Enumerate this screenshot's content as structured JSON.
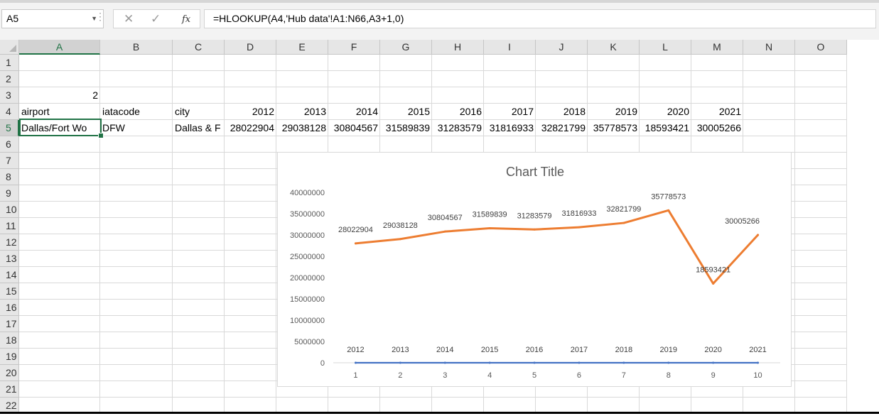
{
  "name_box": {
    "value": "A5"
  },
  "formula_bar": {
    "cancel_icon": "close-icon",
    "enter_icon": "check-icon",
    "function_label": "fx",
    "formula": "=HLOOKUP(A4,'Hub data'!A1:N66,A3+1,0)"
  },
  "columns": [
    "A",
    "B",
    "C",
    "D",
    "E",
    "F",
    "G",
    "H",
    "I",
    "J",
    "K",
    "L",
    "M",
    "N",
    "O"
  ],
  "rows": [
    "1",
    "2",
    "3",
    "4",
    "5",
    "6",
    "7",
    "8",
    "9",
    "10",
    "11",
    "12",
    "13",
    "14",
    "15",
    "16",
    "17",
    "18",
    "19",
    "20",
    "21",
    "22"
  ],
  "active_cell": "A5",
  "cells": {
    "A3": "2",
    "A4": "airport",
    "B4": "iatacode",
    "C4": "city",
    "D4": "2012",
    "E4": "2013",
    "F4": "2014",
    "G4": "2015",
    "H4": "2016",
    "I4": "2017",
    "J4": "2018",
    "K4": "2019",
    "L4": "2020",
    "M4": "2021",
    "A5": "Dallas/Fort Wo",
    "B5": "DFW",
    "C5": "Dallas & F",
    "D5": "28022904",
    "E5": "29038128",
    "F5": "30804567",
    "G5": "31589839",
    "H5": "31283579",
    "I5": "31816933",
    "J5": "32821799",
    "K5": "35778573",
    "L5": "18593421",
    "M5": "30005266"
  },
  "chart_data": {
    "type": "line",
    "title": "Chart Title",
    "categories": [
      "1",
      "2",
      "3",
      "4",
      "5",
      "6",
      "7",
      "8",
      "9",
      "10"
    ],
    "ylim": [
      0,
      40000000
    ],
    "yticks": [
      "0",
      "5000000",
      "10000000",
      "15000000",
      "20000000",
      "25000000",
      "30000000",
      "35000000",
      "40000000"
    ],
    "grid": false,
    "series": [
      {
        "values": [
          2012,
          2013,
          2014,
          2015,
          2016,
          2017,
          2018,
          2019,
          2020,
          2021
        ],
        "labels": [
          "2012",
          "2013",
          "2014",
          "2015",
          "2016",
          "2017",
          "2018",
          "2019",
          "2020",
          "2021"
        ],
        "color": "#4472c4"
      },
      {
        "values": [
          28022904,
          29038128,
          30804567,
          31589839,
          31283579,
          31816933,
          32821799,
          35778573,
          18593421,
          30005266
        ],
        "labels": [
          "28022904",
          "29038128",
          "30804567",
          "31589839",
          "31283579",
          "31816933",
          "32821799",
          "35778573",
          "18593421",
          "30005266"
        ],
        "color": "#ed7d31"
      }
    ]
  }
}
